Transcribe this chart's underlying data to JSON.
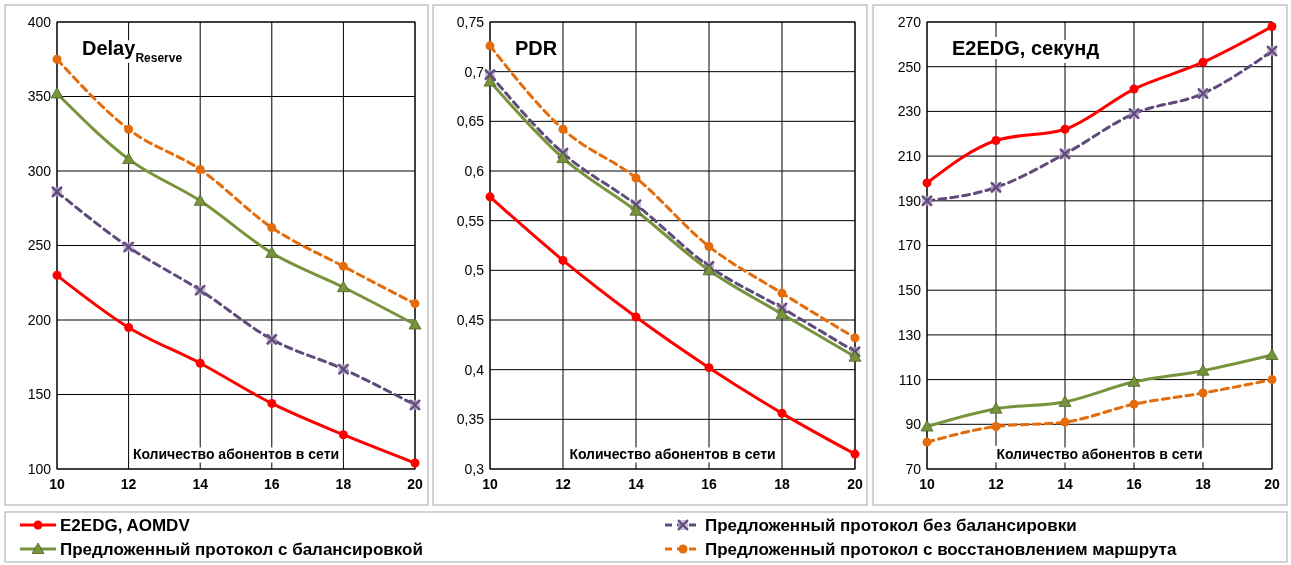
{
  "chart_data": [
    {
      "type": "line",
      "title": "Delay$_{Reserve}$",
      "xlabel": "Количество абонентов в сети",
      "x": [
        10,
        12,
        14,
        16,
        18,
        20
      ],
      "xlim": [
        10,
        20
      ],
      "xticks": [
        10,
        12,
        14,
        16,
        18,
        20
      ],
      "ylim": [
        100,
        400
      ],
      "yticks": [
        100,
        150,
        200,
        250,
        300,
        350,
        400
      ],
      "grid": true,
      "legend": "bottom",
      "series": [
        {
          "name": "E2EDG, AOMDV",
          "color": "#ff0000",
          "marker": "circle",
          "line_style": "solid",
          "values": [
            230,
            195,
            171,
            144,
            123,
            104
          ]
        },
        {
          "name": "Предложенный протокол без балансировки",
          "color": "#604a7b",
          "marker": "cross",
          "line_style": "dashed",
          "values": [
            286,
            249,
            220,
            187,
            167,
            143
          ]
        },
        {
          "name": "Предложенный протокол с балансировкой",
          "color": "#77933c",
          "marker": "triangle",
          "line_style": "solid",
          "values": [
            352,
            308,
            280,
            245,
            222,
            197
          ]
        },
        {
          "name": "Предложенный протокол с восстановлением маршрута",
          "color": "#e46c0a",
          "marker": "circle",
          "line_style": "dashed",
          "values": [
            375,
            328,
            301,
            262,
            236,
            211
          ]
        }
      ]
    },
    {
      "type": "line",
      "title": "PDR",
      "xlabel": "Количество абонентов в сети",
      "x": [
        10,
        12,
        14,
        16,
        18,
        20
      ],
      "xlim": [
        10,
        20
      ],
      "xticks": [
        10,
        12,
        14,
        16,
        18,
        20
      ],
      "ylim": [
        0.3,
        0.75
      ],
      "yticks": [
        {
          "value": 0.3,
          "label": "0,3"
        },
        {
          "value": 0.35,
          "label": "0,35"
        },
        {
          "value": 0.4,
          "label": "0,4"
        },
        {
          "value": 0.45,
          "label": "0,45"
        },
        {
          "value": 0.5,
          "label": "0,5"
        },
        {
          "value": 0.55,
          "label": "0,55"
        },
        {
          "value": 0.6,
          "label": "0,6"
        },
        {
          "value": 0.65,
          "label": "0,65"
        },
        {
          "value": 0.7,
          "label": "0,7"
        },
        {
          "value": 0.75,
          "label": "0,75"
        }
      ],
      "grid": true,
      "series": [
        {
          "color": "#ff0000",
          "marker": "circle",
          "line_style": "solid",
          "values": [
            0.574,
            0.51,
            0.453,
            0.402,
            0.356,
            0.315
          ]
        },
        {
          "color": "#604a7b",
          "marker": "cross",
          "line_style": "dashed",
          "values": [
            0.697,
            0.618,
            0.566,
            0.504,
            0.462,
            0.418
          ]
        },
        {
          "color": "#77933c",
          "marker": "triangle",
          "line_style": "solid",
          "values": [
            0.69,
            0.613,
            0.56,
            0.5,
            0.456,
            0.413
          ]
        },
        {
          "color": "#e46c0a",
          "marker": "circle",
          "line_style": "dashed",
          "values": [
            0.726,
            0.642,
            0.593,
            0.524,
            0.477,
            0.432
          ]
        }
      ]
    },
    {
      "type": "line",
      "title": "E2EDG, секунд",
      "xlabel": "Количество абонентов в сети",
      "x": [
        10,
        12,
        14,
        16,
        18,
        20
      ],
      "xlim": [
        10,
        20
      ],
      "xticks": [
        10,
        12,
        14,
        16,
        18,
        20
      ],
      "ylim": [
        70,
        270
      ],
      "yticks": [
        70,
        90,
        110,
        130,
        150,
        170,
        190,
        210,
        230,
        250,
        270
      ],
      "grid": true,
      "series": [
        {
          "color": "#ff0000",
          "marker": "circle",
          "line_style": "solid",
          "values": [
            198,
            217,
            222,
            240,
            252,
            268
          ]
        },
        {
          "color": "#604a7b",
          "marker": "cross",
          "line_style": "dashed",
          "values": [
            190,
            196,
            211,
            229,
            238,
            257
          ]
        },
        {
          "color": "#77933c",
          "marker": "triangle",
          "line_style": "solid",
          "values": [
            89,
            97,
            100,
            109,
            114,
            121
          ]
        },
        {
          "color": "#e46c0a",
          "marker": "circle",
          "line_style": "dashed",
          "values": [
            82,
            89,
            91,
            99,
            104,
            110
          ]
        }
      ]
    }
  ]
}
